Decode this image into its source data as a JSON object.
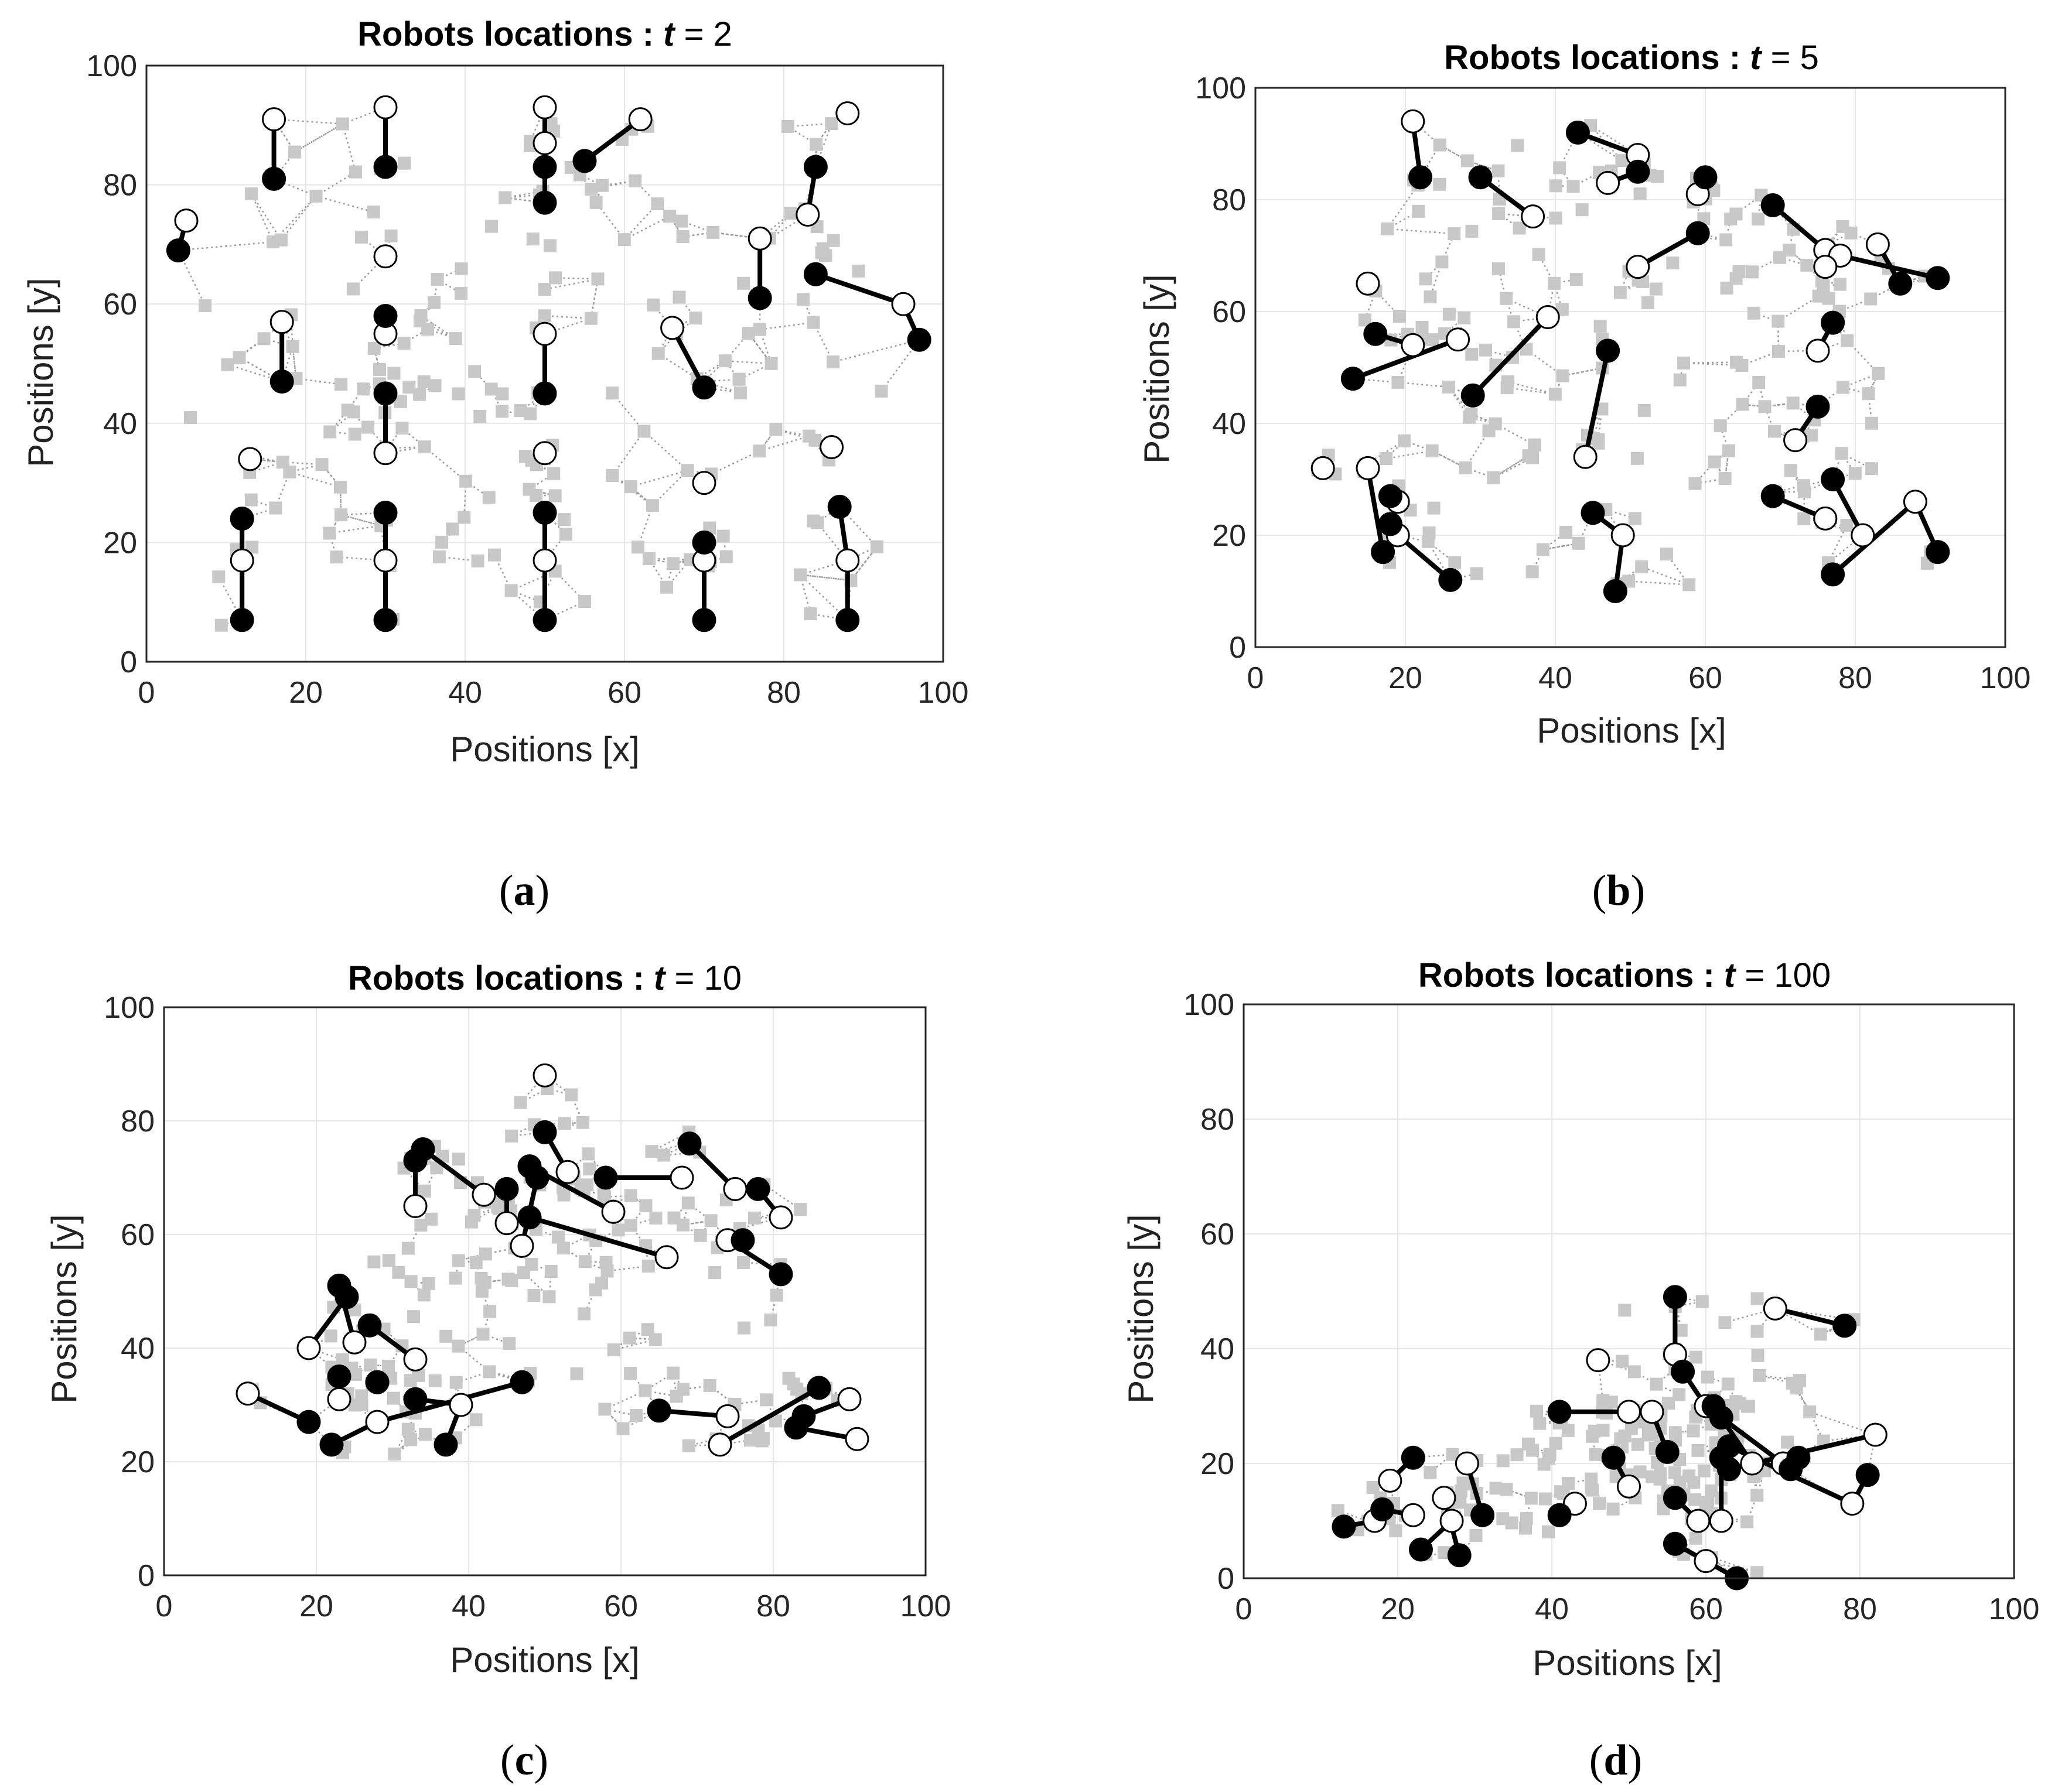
{
  "colors": {
    "robot_fill": "#000000",
    "target_fill": "#ffffff",
    "path_line": "#000000",
    "point_fill": "#c8c8c8",
    "mesh_line": "#9a9a9a",
    "grid": "#e6e6e6"
  },
  "chart_data": [
    {
      "type": "scatter",
      "title_prefix": "Robots locations :",
      "title_var": "t",
      "title_eq": "= 2",
      "xlabel": "Positions [x]",
      "ylabel": "Positions [y]",
      "xlim": [
        0,
        100
      ],
      "ylim": [
        0,
        100
      ],
      "xticks": [
        "0",
        "20",
        "40",
        "60",
        "80",
        "100"
      ],
      "yticks": [
        "0",
        "20",
        "40",
        "60",
        "80",
        "100"
      ],
      "grid": true,
      "caption": [
        "(",
        "a",
        ")"
      ],
      "legend": "none",
      "series": [
        {
          "name": "robot current position",
          "marker": "filled circle",
          "points": [
            [
              4,
              69
            ],
            [
              16,
              81
            ],
            [
              30,
              83
            ],
            [
              50,
              83
            ],
            [
              50,
              77
            ],
            [
              55,
              84
            ],
            [
              84,
              83
            ],
            [
              77,
              61
            ],
            [
              84,
              65
            ],
            [
              30,
              58
            ],
            [
              17,
              47
            ],
            [
              30,
              45
            ],
            [
              50,
              45
            ],
            [
              70,
              46
            ],
            [
              97,
              54
            ],
            [
              12,
              24
            ],
            [
              30,
              25
            ],
            [
              50,
              25
            ],
            [
              70,
              20
            ],
            [
              87,
              26
            ],
            [
              12,
              7
            ],
            [
              30,
              7
            ],
            [
              50,
              7
            ],
            [
              70,
              7
            ],
            [
              88,
              7
            ]
          ]
        },
        {
          "name": "robot target",
          "marker": "open circle",
          "points": [
            [
              5,
              74
            ],
            [
              16,
              91
            ],
            [
              30,
              93
            ],
            [
              50,
              93
            ],
            [
              50,
              87
            ],
            [
              62,
              91
            ],
            [
              88,
              92
            ],
            [
              77,
              71
            ],
            [
              83,
              75
            ],
            [
              30,
              68
            ],
            [
              17,
              57
            ],
            [
              30,
              55
            ],
            [
              50,
              55
            ],
            [
              66,
              56
            ],
            [
              95,
              60
            ],
            [
              13,
              34
            ],
            [
              30,
              35
            ],
            [
              50,
              35
            ],
            [
              70,
              30
            ],
            [
              86,
              36
            ],
            [
              12,
              17
            ],
            [
              30,
              17
            ],
            [
              50,
              17
            ],
            [
              70,
              17
            ],
            [
              88,
              17
            ]
          ]
        },
        {
          "name": "sample points",
          "marker": "gray square",
          "count": 190
        }
      ]
    },
    {
      "type": "scatter",
      "title_prefix": "Robots locations :",
      "title_var": "t",
      "title_eq": "= 5",
      "xlabel": "Positions [x]",
      "ylabel": "Positions [y]",
      "xlim": [
        0,
        100
      ],
      "ylim": [
        0,
        100
      ],
      "xticks": [
        "0",
        "20",
        "40",
        "60",
        "80",
        "100"
      ],
      "yticks": [
        "0",
        "20",
        "40",
        "60",
        "80",
        "100"
      ],
      "grid": true,
      "caption": [
        "(",
        "b",
        ")"
      ],
      "legend": "none",
      "series": [
        {
          "name": "robot current position",
          "marker": "filled circle",
          "points": [
            [
              22,
              84
            ],
            [
              30,
              84
            ],
            [
              43,
              92
            ],
            [
              51,
              85
            ],
            [
              60,
              84
            ],
            [
              59,
              74
            ],
            [
              69,
              79
            ],
            [
              86,
              65
            ],
            [
              91,
              66
            ],
            [
              77,
              58
            ],
            [
              16,
              56
            ],
            [
              13,
              48
            ],
            [
              29,
              45
            ],
            [
              47,
              53
            ],
            [
              75,
              43
            ],
            [
              18,
              27
            ],
            [
              18,
              22
            ],
            [
              17,
              17
            ],
            [
              26,
              12
            ],
            [
              45,
              24
            ],
            [
              48,
              10
            ],
            [
              69,
              27
            ],
            [
              77,
              30
            ],
            [
              77,
              13
            ],
            [
              91,
              17
            ]
          ]
        },
        {
          "name": "robot target",
          "marker": "open circle",
          "points": [
            [
              21,
              94
            ],
            [
              37,
              77
            ],
            [
              47,
              83
            ],
            [
              51,
              88
            ],
            [
              59,
              81
            ],
            [
              51,
              68
            ],
            [
              76,
              71
            ],
            [
              78,
              70
            ],
            [
              83,
              72
            ],
            [
              76,
              68
            ],
            [
              15,
              65
            ],
            [
              21,
              54
            ],
            [
              27,
              55
            ],
            [
              39,
              59
            ],
            [
              75,
              53
            ],
            [
              9,
              32
            ],
            [
              15,
              32
            ],
            [
              19,
              26
            ],
            [
              19,
              20
            ],
            [
              44,
              34
            ],
            [
              49,
              20
            ],
            [
              72,
              37
            ],
            [
              76,
              23
            ],
            [
              81,
              20
            ],
            [
              88,
              26
            ]
          ]
        },
        {
          "name": "sample points",
          "marker": "gray square",
          "count": 190
        }
      ]
    },
    {
      "type": "scatter",
      "title_prefix": "Robots locations :",
      "title_var": "t",
      "title_eq": "= 10",
      "xlabel": "Positions [x]",
      "ylabel": "Positions [y]",
      "xlim": [
        0,
        100
      ],
      "ylim": [
        0,
        100
      ],
      "xticks": [
        "0",
        "20",
        "40",
        "60",
        "80",
        "100"
      ],
      "yticks": [
        "0",
        "20",
        "40",
        "60",
        "80",
        "100"
      ],
      "grid": true,
      "caption": [
        "(",
        "c",
        ")"
      ],
      "legend": "none",
      "series": [
        {
          "name": "robot current position",
          "marker": "filled circle",
          "points": [
            [
              50,
              78
            ],
            [
              33,
              73
            ],
            [
              34,
              75
            ],
            [
              45,
              68
            ],
            [
              48,
              72
            ],
            [
              49,
              70
            ],
            [
              48,
              63
            ],
            [
              58,
              70
            ],
            [
              69,
              76
            ],
            [
              78,
              68
            ],
            [
              76,
              59
            ],
            [
              81,
              53
            ],
            [
              23,
              51
            ],
            [
              24,
              49
            ],
            [
              27,
              44
            ],
            [
              23,
              35
            ],
            [
              28,
              34
            ],
            [
              33,
              31
            ],
            [
              47,
              34
            ],
            [
              37,
              23
            ],
            [
              19,
              27
            ],
            [
              22,
              23
            ],
            [
              65,
              29
            ],
            [
              83,
              26
            ],
            [
              84,
              28
            ],
            [
              86,
              33
            ]
          ]
        },
        {
          "name": "robot target",
          "marker": "open circle",
          "points": [
            [
              50,
              88
            ],
            [
              33,
              65
            ],
            [
              42,
              67
            ],
            [
              45,
              62
            ],
            [
              47,
              58
            ],
            [
              53,
              71
            ],
            [
              59,
              64
            ],
            [
              68,
              70
            ],
            [
              74,
              59
            ],
            [
              75,
              68
            ],
            [
              81,
              63
            ],
            [
              66,
              56
            ],
            [
              19,
              40
            ],
            [
              25,
              41
            ],
            [
              28,
              34
            ],
            [
              23,
              31
            ],
            [
              28,
              27
            ],
            [
              33,
              38
            ],
            [
              39,
              30
            ],
            [
              11,
              32
            ],
            [
              73,
              23
            ],
            [
              74,
              28
            ],
            [
              90,
              31
            ],
            [
              91,
              24
            ]
          ]
        },
        {
          "name": "sample points",
          "marker": "gray square",
          "count": 190
        }
      ]
    },
    {
      "type": "scatter",
      "title_prefix": "Robots locations :",
      "title_var": "t",
      "title_eq": "= 100",
      "xlabel": "Positions [x]",
      "ylabel": "Positions [y]",
      "xlim": [
        0,
        100
      ],
      "ylim": [
        0,
        100
      ],
      "xticks": [
        "0",
        "20",
        "40",
        "60",
        "80",
        "100"
      ],
      "yticks": [
        "0",
        "20",
        "40",
        "60",
        "80",
        "100"
      ],
      "grid": true,
      "caption": [
        "(",
        "d",
        ")"
      ],
      "legend": "none",
      "series": [
        {
          "name": "robot current position",
          "marker": "filled circle",
          "points": [
            [
              56,
              49
            ],
            [
              57,
              36
            ],
            [
              78,
              44
            ],
            [
              41,
              29
            ],
            [
              22,
              21
            ],
            [
              13,
              9
            ],
            [
              18,
              12
            ],
            [
              23,
              5
            ],
            [
              28,
              4
            ],
            [
              31,
              11
            ],
            [
              41,
              11
            ],
            [
              48,
              21
            ],
            [
              55,
              22
            ],
            [
              56,
              14
            ],
            [
              56,
              6
            ],
            [
              61,
              30
            ],
            [
              62,
              28
            ],
            [
              62,
              21
            ],
            [
              63,
              23
            ],
            [
              63,
              19
            ],
            [
              64,
              0
            ],
            [
              71,
              19
            ],
            [
              72,
              21
            ],
            [
              81,
              18
            ]
          ]
        },
        {
          "name": "robot target",
          "marker": "open circle",
          "points": [
            [
              46,
              38
            ],
            [
              56,
              39
            ],
            [
              69,
              47
            ],
            [
              60,
              30
            ],
            [
              50,
              29
            ],
            [
              53,
              29
            ],
            [
              19,
              17
            ],
            [
              22,
              11
            ],
            [
              17,
              10
            ],
            [
              26,
              14
            ],
            [
              27,
              10
            ],
            [
              29,
              20
            ],
            [
              43,
              13
            ],
            [
              50,
              16
            ],
            [
              59,
              10
            ],
            [
              60,
              3
            ],
            [
              62,
              10
            ],
            [
              66,
              20
            ],
            [
              70,
              20
            ],
            [
              79,
              13
            ],
            [
              82,
              25
            ]
          ]
        },
        {
          "name": "sample points",
          "marker": "gray square",
          "count": 190
        }
      ]
    }
  ]
}
